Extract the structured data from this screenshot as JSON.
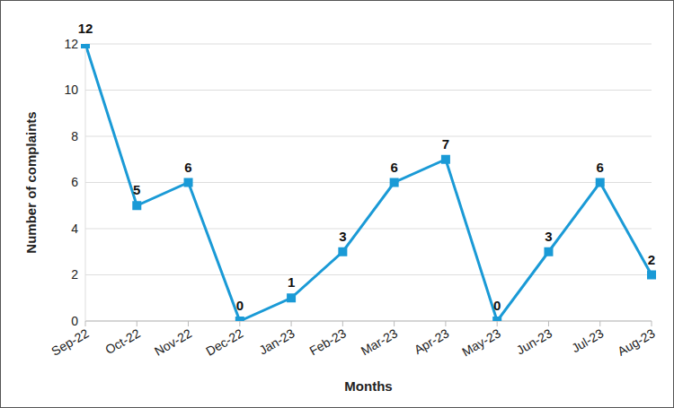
{
  "chart_data": {
    "type": "line",
    "x_label": "Months",
    "y_label": "Number of complaints",
    "categories": [
      "Sep-22",
      "Oct-22",
      "Nov-22",
      "Dec-22",
      "Jan-23",
      "Feb-23",
      "Mar-23",
      "Apr-23",
      "May-23",
      "Jun-23",
      "Jul-23",
      "Aug-23"
    ],
    "values": [
      12,
      5,
      6,
      0,
      1,
      3,
      6,
      7,
      0,
      3,
      6,
      2
    ],
    "color": "#1a9ad6",
    "marker": "square",
    "ylim": [
      0,
      12
    ],
    "yticks": [
      0,
      2,
      4,
      6,
      8,
      10,
      12
    ],
    "grid": true,
    "data_labels": true
  }
}
